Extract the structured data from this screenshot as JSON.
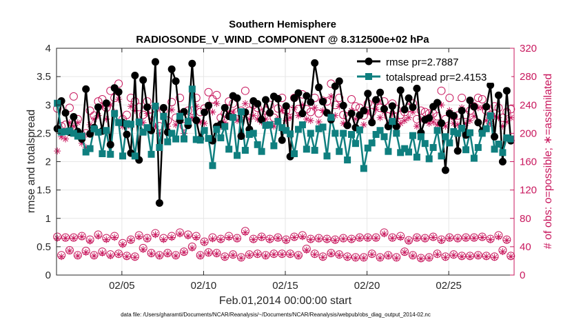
{
  "chart_data": {
    "type": "line",
    "title": "Southern Hemisphere",
    "subtitle": "RADIOSONDE_V_WIND_COMPONENT @ 8.312500e+02 hPa",
    "xlabel": "Feb.01,2014 00:00:00 start",
    "ylabel": "rmse and totalspread",
    "y2label": "# of obs: o=possible; ∗=assimilated",
    "footnote": "data file: /Users/gharamti/Documents/NCAR/Reanalysis/~/Documents/NCAR/Reanalysis/webpub/obs_diag_output_2014-02.nc",
    "xlim": [
      1.0,
      29.0
    ],
    "ylim": [
      0,
      4
    ],
    "y2lim": [
      0,
      320
    ],
    "xticks": [
      5,
      10,
      15,
      20,
      25
    ],
    "xticklabels": [
      "02/05",
      "02/10",
      "02/15",
      "02/20",
      "02/25"
    ],
    "yticks": [
      "0",
      "0.5",
      "1",
      "1.5",
      "2",
      "2.5",
      "3",
      "3.5",
      "4"
    ],
    "y2ticks": [
      "0",
      "40",
      "80",
      "120",
      "160",
      "200",
      "240",
      "280",
      "320"
    ],
    "legend": [
      {
        "name": "rmse",
        "label": "rmse pr=2.7887",
        "color": "#000000"
      },
      {
        "name": "totalspread",
        "label": "totalspread pr=2.4153",
        "color": "#0f7f7f"
      }
    ],
    "x": [
      1.05,
      1.3,
      1.55,
      1.8,
      2.05,
      2.3,
      2.55,
      2.8,
      3.05,
      3.3,
      3.55,
      3.8,
      4.05,
      4.3,
      4.55,
      4.8,
      5.05,
      5.3,
      5.55,
      5.8,
      6.05,
      6.3,
      6.55,
      6.8,
      7.05,
      7.3,
      7.55,
      7.8,
      8.05,
      8.3,
      8.55,
      8.8,
      9.05,
      9.3,
      9.55,
      9.8,
      10.05,
      10.3,
      10.55,
      10.8,
      11.05,
      11.3,
      11.55,
      11.8,
      12.05,
      12.3,
      12.55,
      12.8,
      13.05,
      13.3,
      13.55,
      13.8,
      14.05,
      14.3,
      14.55,
      14.8,
      15.05,
      15.3,
      15.55,
      15.8,
      16.05,
      16.3,
      16.55,
      16.8,
      17.05,
      17.3,
      17.55,
      17.8,
      18.05,
      18.3,
      18.55,
      18.8,
      19.05,
      19.3,
      19.55,
      19.8,
      20.05,
      20.3,
      20.55,
      20.8,
      21.05,
      21.3,
      21.55,
      21.8,
      22.05,
      22.3,
      22.55,
      22.8,
      23.05,
      23.3,
      23.55,
      23.8,
      24.05,
      24.3,
      24.55,
      24.8,
      25.05,
      25.3,
      25.55,
      25.8,
      26.05,
      26.3,
      26.55,
      26.8,
      27.05,
      27.3,
      27.55,
      27.8,
      28.05,
      28.3,
      28.55,
      28.8
    ],
    "rmse": [
      2.58,
      3.07,
      2.86,
      2.52,
      2.79,
      2.53,
      2.4,
      3.28,
      2.49,
      2.6,
      2.96,
      2.54,
      3.03,
      2.3,
      3.3,
      3.23,
      2.69,
      2.48,
      2.15,
      3.52,
      2.03,
      3.44,
      2.96,
      2.55,
      3.76,
      1.27,
      2.95,
      2.52,
      3.63,
      3.42,
      2.73,
      2.88,
      2.64,
      3.73,
      2.73,
      2.4,
      2.87,
      2.99,
      2.37,
      2.62,
      2.66,
      2.95,
      2.8,
      3.16,
      3.12,
      2.45,
      2.87,
      2.57,
      3.07,
      3.02,
      2.74,
      3.09,
      2.86,
      3.15,
      3.11,
      2.38,
      2.98,
      2.09,
      3.12,
      3.21,
      2.85,
      3.16,
      3.05,
      3.74,
      3.31,
      3.06,
      2.86,
      2.74,
      3.33,
      3.42,
      2.99,
      2.64,
      2.85,
      2.6,
      2.82,
      2.9,
      3.2,
      2.69,
      3.09,
      3.22,
      2.93,
      2.62,
      2.98,
      2.62,
      3.26,
      2.92,
      3.12,
      2.96,
      3.29,
      2.51,
      2.74,
      2.77,
      2.97,
      3.04,
      2.68,
      1.85,
      2.85,
      2.81,
      2.19,
      2.9,
      2.47,
      3.08,
      2.97,
      2.69,
      2.54,
      2.97,
      3.35,
      2.44,
      3.17,
      2.0,
      3.25,
      2.37,
      3.39,
      1.96,
      3.21,
      2.27
    ],
    "totalspread": [
      3.03,
      2.52,
      2.53,
      2.54,
      2.5,
      2.45,
      2.45,
      2.17,
      2.23,
      2.58,
      2.52,
      2.14,
      2.55,
      2.13,
      2.85,
      2.69,
      2.1,
      2.67,
      2.66,
      2.1,
      2.7,
      2.52,
      2.6,
      2.13,
      2.98,
      2.25,
      2.8,
      2.35,
      2.5,
      2.4,
      2.8,
      2.4,
      2.71,
      3.28,
      2.39,
      2.38,
      2.55,
      2.41,
      1.93,
      2.57,
      2.42,
      2.62,
      2.22,
      2.78,
      2.11,
      2.88,
      2.2,
      2.48,
      2.5,
      2.3,
      2.18,
      2.64,
      2.65,
      2.28,
      2.71,
      2.6,
      2.55,
      2.49,
      2.14,
      2.57,
      2.65,
      2.22,
      2.5,
      2.2,
      2.58,
      2.61,
      2.1,
      2.78,
      2.5,
      2.18,
      2.5,
      2.03,
      2.48,
      2.32,
      2.56,
      1.88,
      2.24,
      2.33,
      2.48,
      2.55,
      2.44,
      2.18,
      2.71,
      2.5,
      2.16,
      2.23,
      2.17,
      2.46,
      2.08,
      2.44,
      2.32,
      2.05,
      2.25,
      2.55,
      2.1,
      2.44,
      2.33,
      2.53,
      2.5,
      2.59,
      2.21,
      2.51,
      2.06,
      2.25,
      2.5,
      2.58,
      2.81,
      2.22,
      2.31,
      2.16,
      2.42,
      2.4,
      2.2,
      1.98,
      2.45,
      1.89
    ],
    "possible": [
      54,
      28,
      53,
      35,
      53,
      28,
      55,
      34,
      50,
      28,
      57,
      33,
      52,
      29,
      55,
      30,
      45,
      27,
      50,
      26,
      56,
      38,
      52,
      31,
      59,
      28,
      52,
      31,
      55,
      28,
      60,
      33,
      57,
      40,
      55,
      28,
      47,
      32,
      53,
      31,
      51,
      26,
      55,
      29,
      52,
      25,
      62,
      29,
      51,
      30,
      54,
      28,
      51,
      30,
      53,
      30,
      50,
      30,
      54,
      28,
      56,
      37,
      51,
      30,
      52,
      26,
      51,
      31,
      50,
      29,
      52,
      26,
      51,
      25,
      53,
      25,
      53,
      30,
      53,
      25,
      60,
      28,
      53,
      25,
      55,
      33,
      49,
      28,
      53,
      24,
      52,
      25,
      54,
      30,
      50,
      26,
      53,
      29,
      52,
      27,
      53,
      27,
      53,
      28,
      54,
      27,
      51,
      26,
      56,
      35,
      50,
      27,
      52,
      26,
      50,
      0
    ],
    "assimilated": [
      52,
      26,
      52,
      34,
      52,
      27,
      54,
      32,
      48,
      27,
      55,
      31,
      50,
      27,
      53,
      29,
      43,
      26,
      49,
      25,
      54,
      36,
      51,
      30,
      57,
      27,
      50,
      30,
      53,
      27,
      58,
      32,
      55,
      38,
      53,
      27,
      46,
      31,
      51,
      30,
      50,
      25,
      53,
      28,
      51,
      24,
      60,
      28,
      50,
      29,
      53,
      27,
      50,
      29,
      52,
      29,
      49,
      29,
      53,
      27,
      54,
      35,
      50,
      29,
      51,
      25,
      50,
      30,
      49,
      28,
      51,
      25,
      50,
      24,
      52,
      24,
      52,
      29,
      52,
      24,
      58,
      27,
      52,
      24,
      53,
      32,
      48,
      27,
      52,
      23,
      51,
      24,
      53,
      29,
      49,
      25,
      52,
      28,
      51,
      26,
      52,
      26,
      52,
      27,
      53,
      26,
      50,
      25,
      54,
      33,
      49,
      26,
      51,
      25,
      49,
      0
    ],
    "possible_top": [
      235,
      210,
      212,
      236,
      252,
      220,
      198,
      200,
      232,
      225,
      245,
      248,
      236,
      260,
      250,
      270,
      220,
      226,
      250,
      245,
      237,
      226,
      245,
      234,
      235,
      210,
      232,
      218,
      244,
      222,
      250,
      210,
      232,
      232,
      250,
      230,
      235,
      258,
      248,
      254,
      222,
      228,
      245,
      242,
      230,
      232,
      260,
      232,
      240,
      236,
      228,
      232,
      240,
      222,
      235,
      250,
      232,
      232,
      250,
      234,
      255,
      234,
      230,
      250,
      228,
      246,
      245,
      270,
      240,
      250,
      226,
      224,
      248,
      238,
      236,
      225,
      242,
      230,
      246,
      236,
      245,
      224,
      242,
      234,
      226,
      230,
      236,
      242,
      220,
      232,
      230,
      228,
      228,
      224,
      260,
      220,
      250,
      224,
      225,
      250,
      226,
      232,
      238,
      250,
      248,
      232,
      226,
      238,
      236,
      222,
      230,
      234,
      230,
      240,
      216,
      228
    ],
    "assimilated_top": [
      175,
      195,
      192,
      215,
      210,
      215,
      186,
      180,
      212,
      220,
      225,
      238,
      220,
      240,
      230,
      248,
      210,
      210,
      238,
      232,
      218,
      215,
      228,
      220,
      210,
      200,
      222,
      210,
      233,
      212,
      228,
      200,
      214,
      222,
      238,
      216,
      214,
      236,
      230,
      242,
      210,
      215,
      228,
      230,
      218,
      220,
      242,
      220,
      225,
      220,
      216,
      220,
      228,
      210,
      220,
      232,
      218,
      222,
      236,
      225,
      240,
      220,
      218,
      236,
      216,
      232,
      230,
      252,
      225,
      238,
      214,
      212,
      232,
      220,
      224,
      212,
      230,
      218,
      234,
      222,
      230,
      212,
      228,
      220,
      214,
      218,
      222,
      230,
      210,
      220,
      218,
      214,
      216,
      212,
      240,
      210,
      232,
      214,
      212,
      236,
      214,
      218,
      224,
      236,
      236,
      218,
      214,
      224,
      222,
      210,
      216,
      222,
      218,
      226,
      204,
      214
    ]
  }
}
